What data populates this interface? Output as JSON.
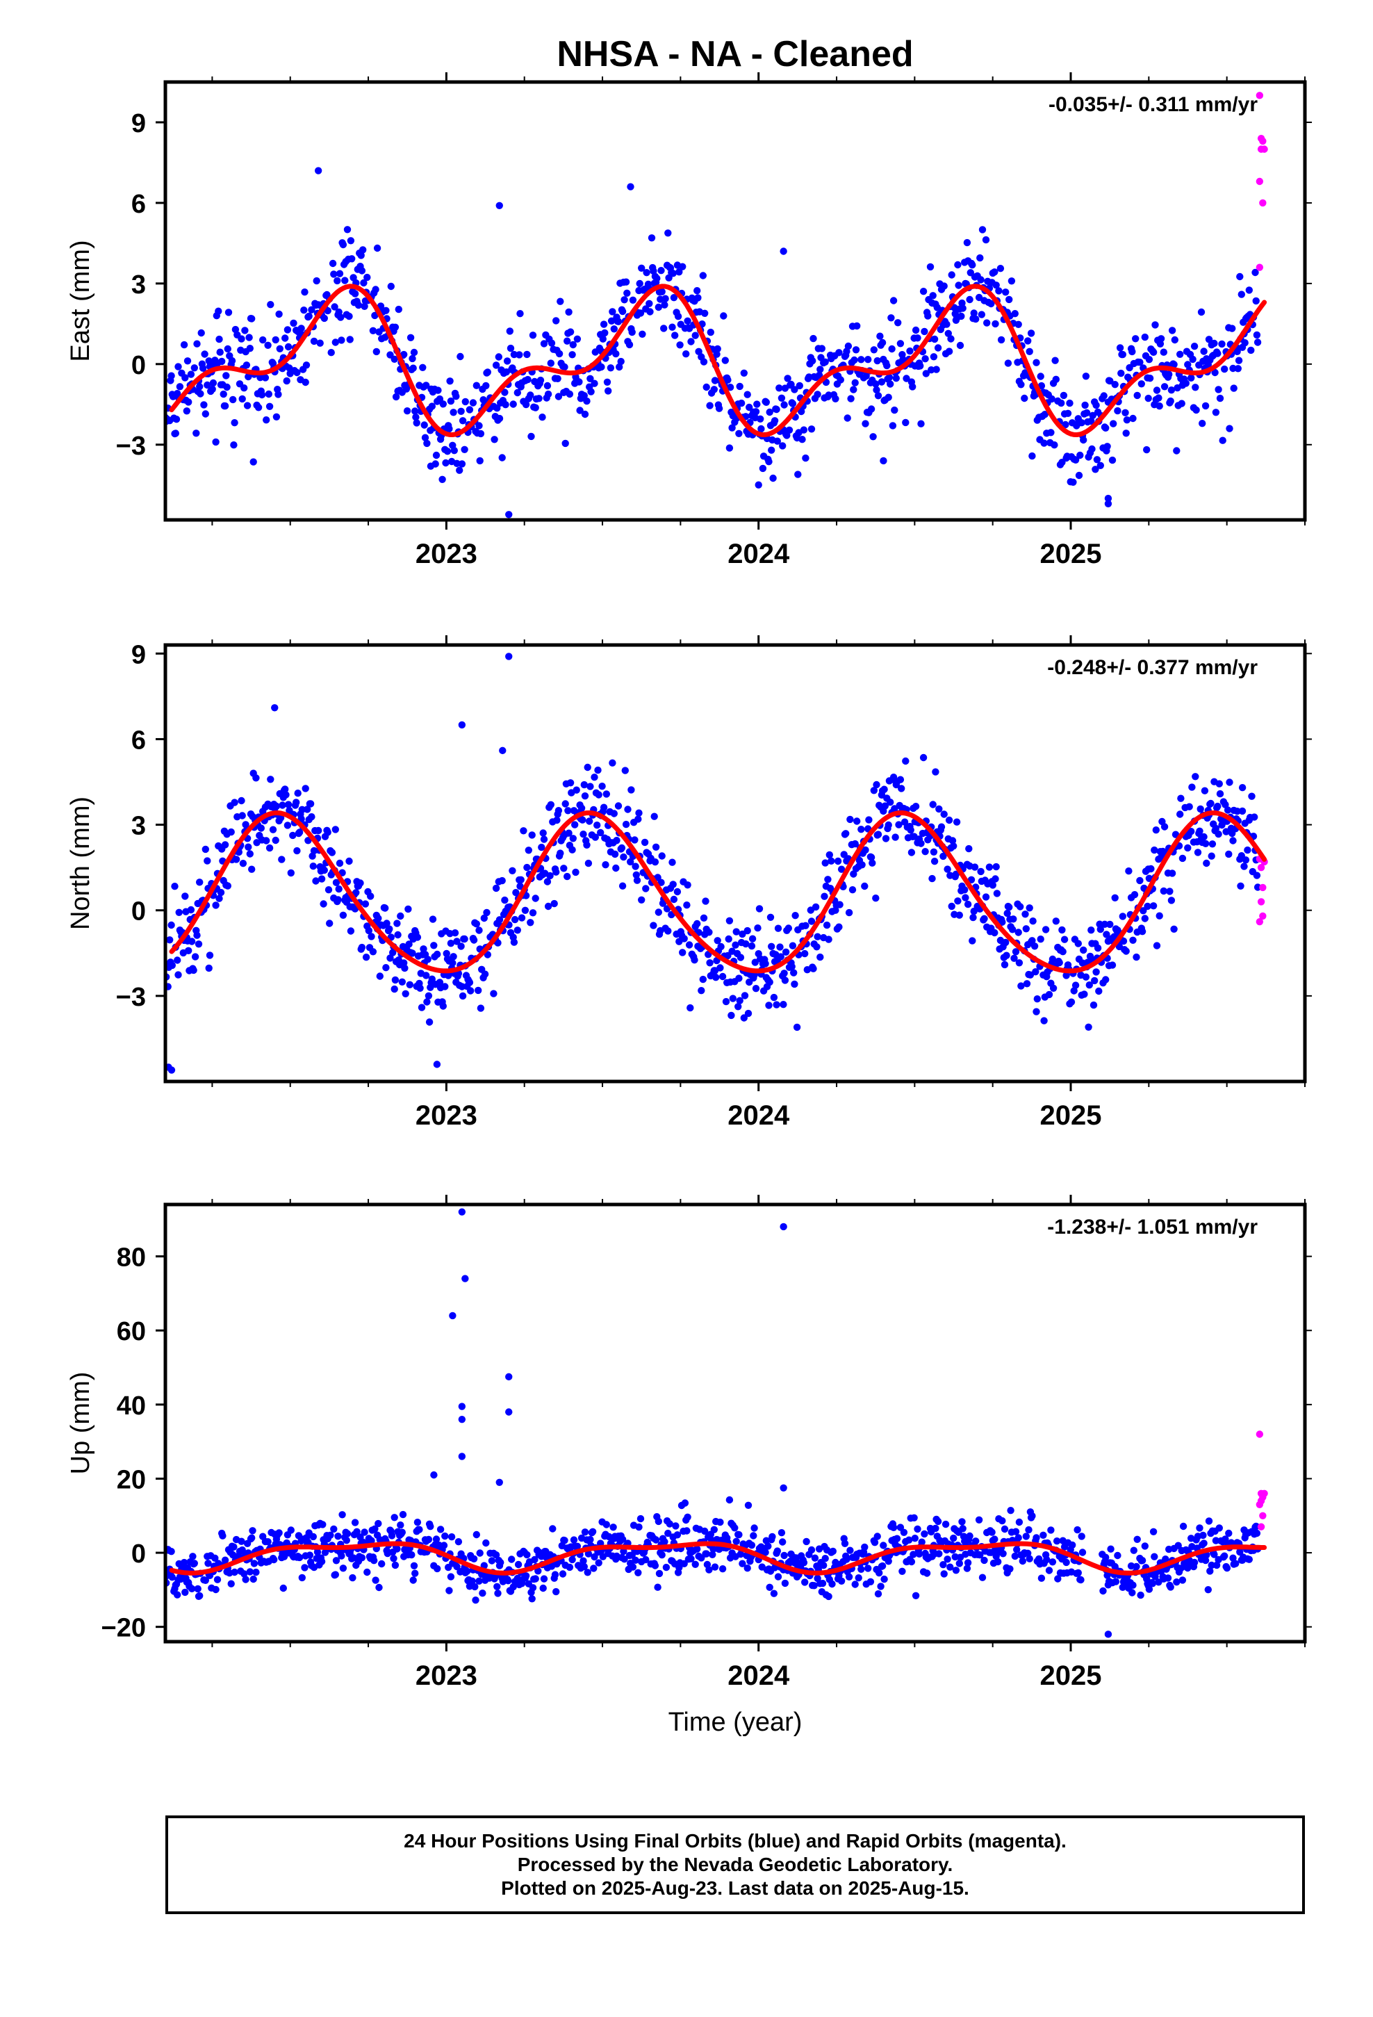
{
  "figure": {
    "title": "NHSA  - NA - Cleaned",
    "xlabel": "Time (year)"
  },
  "colors": {
    "final_orbits": "#0000ff",
    "rapid_orbits": "#ff00ff",
    "fit": "#ff0000",
    "frame": "#000000"
  },
  "chart_data": [
    {
      "type": "scatter",
      "name": "east",
      "ylabel": "East (mm)",
      "rate_label": "-0.035+/- 0.311 mm/yr",
      "xlim": [
        2022.1,
        2025.75
      ],
      "ylim": [
        -5.8,
        10.5
      ],
      "yticks": [
        -3,
        0,
        3,
        6,
        9
      ],
      "ytick_labels": [
        "−3",
        "0",
        "3",
        "6",
        "9"
      ],
      "xticks": [
        2023,
        2024,
        2025
      ],
      "xtick_labels": [
        "2023",
        "2024",
        "2025"
      ],
      "model": {
        "amp1": 2.0,
        "phase1": 2022.37,
        "amp2": 1.2,
        "phase2": 2022.6,
        "offset": 0.0
      },
      "scatter_sd": 0.95,
      "series": [
        {
          "name": "Final Orbits",
          "color": "blue",
          "x_range": [
            2022.1,
            2025.6
          ]
        },
        {
          "name": "Rapid Orbits",
          "color": "magenta",
          "points": [
            [
              2025.605,
              10.0
            ],
            [
              2025.61,
              8.4
            ],
            [
              2025.61,
              8.0
            ],
            [
              2025.615,
              8.3
            ],
            [
              2025.62,
              8.0
            ],
            [
              2025.605,
              6.8
            ],
            [
              2025.615,
              6.0
            ],
            [
              2025.605,
              3.6
            ]
          ]
        }
      ],
      "outliers": [
        [
          2022.59,
          7.2
        ],
        [
          2023.17,
          5.9
        ],
        [
          2023.59,
          6.6
        ],
        [
          2024.08,
          4.2
        ],
        [
          2023.2,
          -5.6
        ],
        [
          2025.12,
          -5.2
        ],
        [
          2025.12,
          -5.0
        ],
        [
          2022.95,
          -3.8
        ],
        [
          2024.4,
          -3.6
        ]
      ]
    },
    {
      "type": "scatter",
      "name": "north",
      "ylabel": "North (mm)",
      "rate_label": "-0.248+/- 0.377 mm/yr",
      "xlim": [
        2022.1,
        2025.75
      ],
      "ylim": [
        -6.0,
        9.3
      ],
      "yticks": [
        -3,
        0,
        3,
        6,
        9
      ],
      "ytick_labels": [
        "−3",
        "0",
        "3",
        "6",
        "9"
      ],
      "xticks": [
        2023,
        2024,
        2025
      ],
      "xtick_labels": [
        "2023",
        "2024",
        "2025"
      ],
      "model": {
        "amp1": 2.75,
        "phase1": 2022.22,
        "amp2": 0.3,
        "phase2": 2022.3,
        "offset": 0.4
      },
      "scatter_sd": 0.85,
      "series": [
        {
          "name": "Final Orbits",
          "color": "blue",
          "x_range": [
            2022.1,
            2025.6
          ]
        },
        {
          "name": "Rapid Orbits",
          "color": "magenta",
          "points": [
            [
              2025.605,
              1.8
            ],
            [
              2025.61,
              1.5
            ],
            [
              2025.615,
              0.8
            ],
            [
              2025.61,
              0.3
            ],
            [
              2025.605,
              -0.4
            ],
            [
              2025.615,
              -0.2
            ],
            [
              2025.62,
              1.7
            ]
          ]
        }
      ],
      "outliers": [
        [
          2023.2,
          8.9
        ],
        [
          2023.05,
          6.5
        ],
        [
          2023.18,
          5.6
        ],
        [
          2022.45,
          7.1
        ],
        [
          2022.97,
          -5.4
        ],
        [
          2022.12,
          -5.6
        ],
        [
          2022.11,
          -5.5
        ],
        [
          2025.55,
          4.3
        ]
      ]
    },
    {
      "type": "scatter",
      "name": "up",
      "ylabel": "Up (mm)",
      "rate_label": "-1.238+/- 1.051 mm/yr",
      "xlim": [
        2022.1,
        2025.75
      ],
      "ylim": [
        -24,
        94
      ],
      "yticks": [
        -20,
        0,
        20,
        40,
        60,
        80
      ],
      "ytick_labels": [
        "−20",
        "0",
        "20",
        "40",
        "60",
        "80"
      ],
      "xticks": [
        2023,
        2024,
        2025
      ],
      "xtick_labels": [
        "2023",
        "2024",
        "2025"
      ],
      "model": {
        "amp1": 3.5,
        "phase1": 2022.45,
        "amp2": 1.5,
        "phase2": 2022.3,
        "offset": -0.5
      },
      "scatter_sd": 3.8,
      "series": [
        {
          "name": "Final Orbits",
          "color": "blue",
          "x_range": [
            2022.1,
            2025.6
          ]
        },
        {
          "name": "Rapid Orbits",
          "color": "magenta",
          "points": [
            [
              2025.605,
              32
            ],
            [
              2025.61,
              16
            ],
            [
              2025.615,
              15
            ],
            [
              2025.62,
              16
            ],
            [
              2025.61,
              14
            ],
            [
              2025.605,
              13
            ],
            [
              2025.615,
              10
            ],
            [
              2025.61,
              7
            ]
          ]
        }
      ],
      "outliers": [
        [
          2023.05,
          92
        ],
        [
          2023.06,
          74
        ],
        [
          2023.02,
          64
        ],
        [
          2023.2,
          47.5
        ],
        [
          2023.05,
          39.5
        ],
        [
          2023.05,
          36
        ],
        [
          2023.2,
          38
        ],
        [
          2023.05,
          26
        ],
        [
          2022.96,
          21
        ],
        [
          2023.17,
          19
        ],
        [
          2024.08,
          88
        ],
        [
          2024.08,
          17.5
        ],
        [
          2025.12,
          -22
        ]
      ]
    }
  ],
  "footer": {
    "line1": "24 Hour Positions Using Final Orbits (blue) and Rapid Orbits (magenta).",
    "line2": "Processed by the Nevada Geodetic Laboratory.",
    "line3": "Plotted on 2025-Aug-23. Last data on 2025-Aug-15."
  }
}
